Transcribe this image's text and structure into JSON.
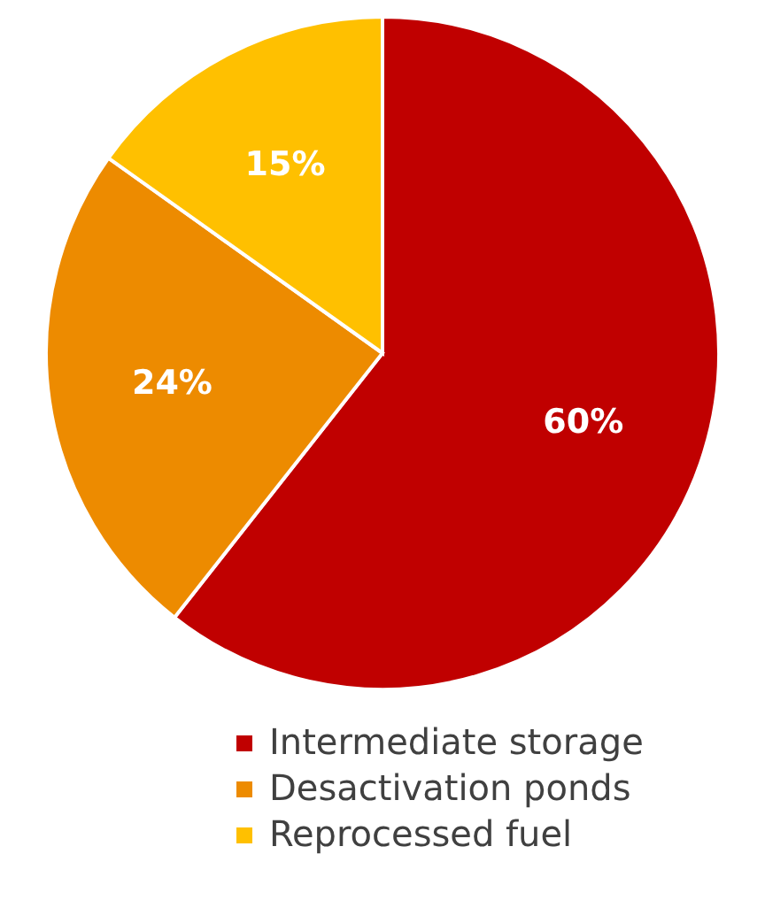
{
  "chart_data": {
    "type": "pie",
    "categories": [
      "Intermediate storage",
      "Desactivation ponds",
      "Reprocessed fuel"
    ],
    "values": [
      60,
      24,
      15
    ],
    "value_labels": [
      "60%",
      "24%",
      "15%"
    ],
    "colors": [
      "#c00000",
      "#ed8b00",
      "#ffc000"
    ],
    "legend": "bottom"
  }
}
